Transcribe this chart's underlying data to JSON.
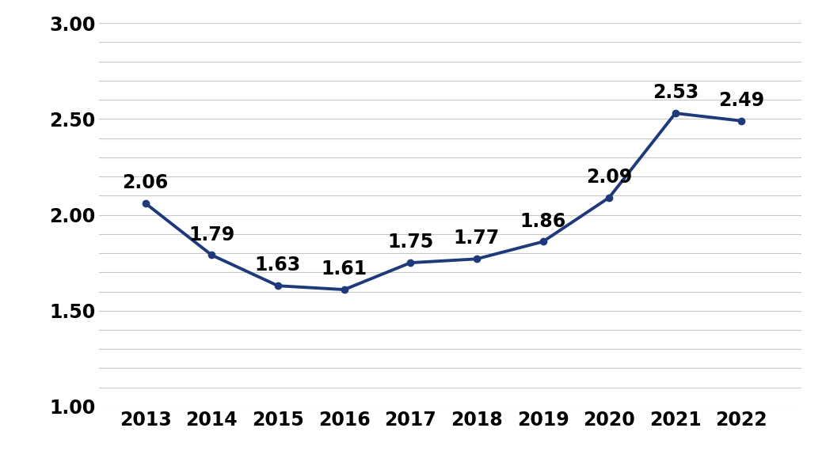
{
  "years": [
    2013,
    2014,
    2015,
    2016,
    2017,
    2018,
    2019,
    2020,
    2021,
    2022
  ],
  "values": [
    2.06,
    1.79,
    1.63,
    1.61,
    1.75,
    1.77,
    1.86,
    2.09,
    2.53,
    2.49
  ],
  "line_color": "#1F3A7A",
  "marker_color": "#1F3A7A",
  "background_color": "#ffffff",
  "ylim": [
    1.0,
    3.0
  ],
  "yticks_major": [
    1.0,
    1.5,
    2.0,
    2.5,
    3.0
  ],
  "ytick_labels": [
    "1.00",
    "1.50",
    "2.00",
    "2.50",
    "3.00"
  ],
  "minor_grid_step": 0.1,
  "grid_color": "#c8c8c8",
  "label_fontsize": 17,
  "tick_fontsize": 17,
  "label_fontweight": "bold",
  "tick_fontweight": "bold",
  "line_width": 2.8,
  "marker_size": 6
}
